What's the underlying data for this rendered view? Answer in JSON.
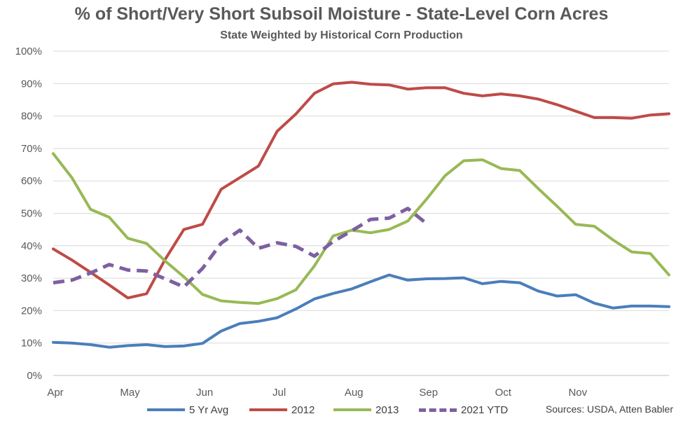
{
  "title": "% of Short/Very Short Subsoil Moisture - State-Level Corn Acres",
  "subtitle": "State Weighted by Historical Corn Production",
  "source": "Sources: USDA, Atten Babler",
  "chart_data": {
    "type": "line",
    "title": "% of Short/Very Short Subsoil Moisture - State-Level Corn Acres",
    "subtitle": "State Weighted by Historical Corn Production",
    "x_labels": [
      "Apr",
      "May",
      "Jun",
      "Jul",
      "Aug",
      "Sep",
      "Oct",
      "Nov"
    ],
    "x_label_week_index": [
      0,
      4,
      8,
      12,
      16,
      20,
      24,
      28
    ],
    "x_weeks": 32,
    "ylim": [
      0,
      100
    ],
    "y_ticks": [
      0,
      10,
      20,
      30,
      40,
      50,
      60,
      70,
      80,
      90,
      100
    ],
    "y_tick_format": "percent",
    "grid": "horizontal",
    "legend_position": "bottom",
    "series": [
      {
        "name": "5 Yr Avg",
        "color": "#4A7EBB",
        "dashed": false,
        "values": [
          10.2,
          10,
          9.5,
          8.7,
          9.2,
          9.5,
          8.9,
          9.1,
          9.9,
          13.7,
          16,
          16.7,
          17.8,
          20.5,
          23.6,
          25.3,
          26.7,
          28.9,
          31,
          29.4,
          29.8,
          29.9,
          30.1,
          28.3,
          29,
          28.6,
          26,
          24.5,
          24.9,
          22.3,
          20.8,
          21.4,
          21.4,
          21.2
        ]
      },
      {
        "name": "2012",
        "color": "#BE4B48",
        "dashed": false,
        "values": [
          39,
          35.6,
          31.8,
          27.9,
          23.9,
          25.2,
          35.8,
          45,
          46.6,
          57.4,
          61,
          64.6,
          75.3,
          80.6,
          87,
          89.9,
          90.4,
          89.8,
          89.6,
          88.3,
          88.7,
          88.7,
          87,
          86.2,
          86.8,
          86.2,
          85.2,
          83.5,
          81.5,
          79.5,
          79.5,
          79.3,
          80.3,
          80.7
        ]
      },
      {
        "name": "2013",
        "color": "#98B954",
        "dashed": false,
        "values": [
          68.4,
          61,
          51.2,
          48.8,
          42.3,
          40.7,
          35.3,
          30.4,
          25,
          23,
          22.5,
          22.2,
          23.7,
          26.4,
          33.8,
          43,
          44.8,
          44,
          45,
          47.6,
          54.3,
          61.6,
          66.2,
          66.5,
          63.8,
          63.2,
          57.6,
          52.2,
          46.6,
          46,
          41.8,
          38.1,
          37.6,
          31
        ]
      },
      {
        "name": "2021 YTD",
        "color": "#7D60A0",
        "dashed": true,
        "values": [
          28.6,
          29.4,
          31.6,
          34.2,
          32.5,
          32.2,
          29.8,
          27.3,
          33,
          40.8,
          44.8,
          39.2,
          40.9,
          39.8,
          36.8,
          41.3,
          44.6,
          48.1,
          48.5,
          51.5,
          46.9
        ]
      }
    ]
  }
}
